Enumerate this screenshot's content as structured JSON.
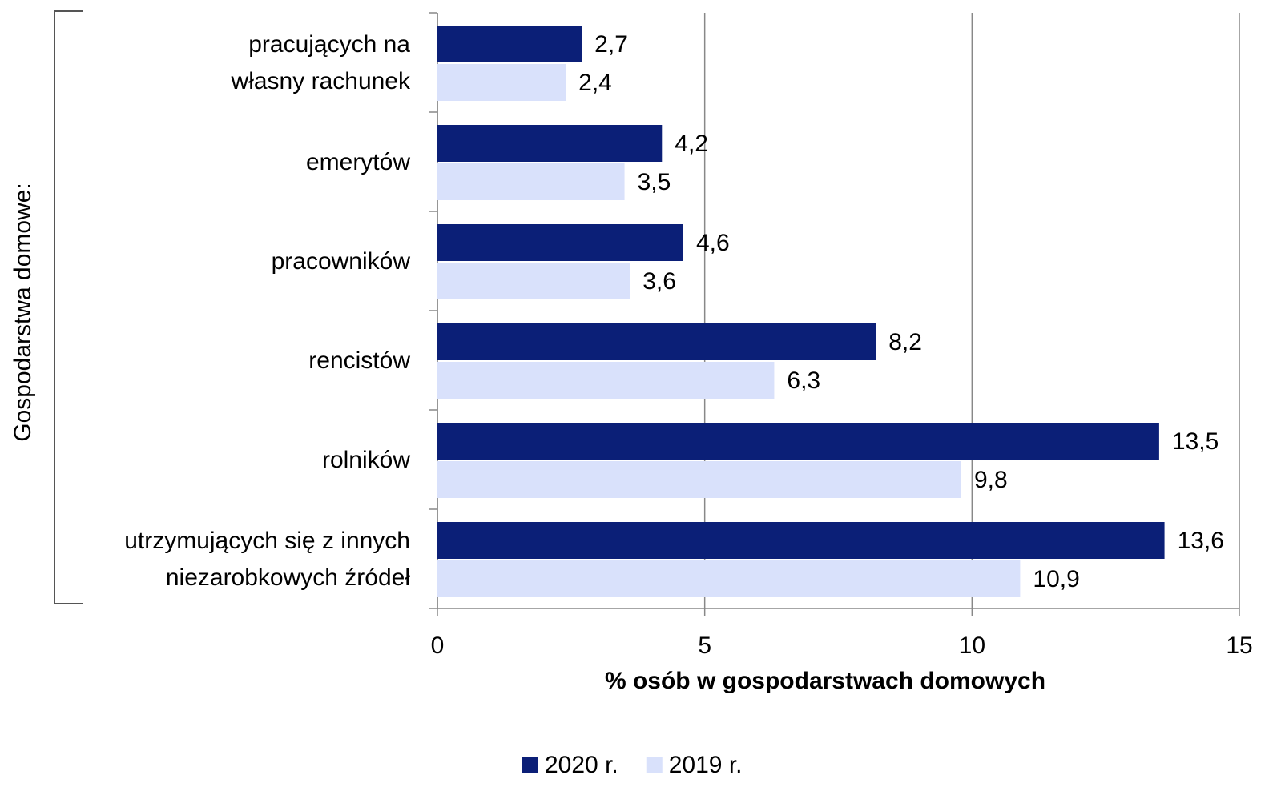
{
  "chart_data": {
    "type": "bar",
    "orientation": "horizontal",
    "categories": [
      "pracujących na\nwłasny rachunek",
      "emerytów",
      "pracowników",
      "rencistów",
      "rolników",
      "utrzymujących się z innych\nniezarobkowych źródeł"
    ],
    "series": [
      {
        "name": "2020 r.",
        "color": "#0b1f77",
        "values": [
          2.7,
          4.2,
          4.6,
          8.2,
          13.5,
          13.6
        ],
        "value_labels": [
          "2,7",
          "4,2",
          "4,6",
          "8,2",
          "13,5",
          "13,6"
        ]
      },
      {
        "name": "2019 r.",
        "color": "#d9e1fb",
        "values": [
          2.4,
          3.5,
          3.6,
          6.3,
          9.8,
          10.9
        ],
        "value_labels": [
          "2,4",
          "3,5",
          "3,6",
          "6,3",
          "9,8",
          "10,9"
        ]
      }
    ],
    "xlim": [
      0,
      15
    ],
    "xticks": [
      0,
      5,
      10,
      15
    ],
    "grid": true,
    "xlabel": "% osób w gospodarstwach domowych",
    "ylabel": "Gospodarstwa domowe:",
    "legend": "bottom"
  }
}
